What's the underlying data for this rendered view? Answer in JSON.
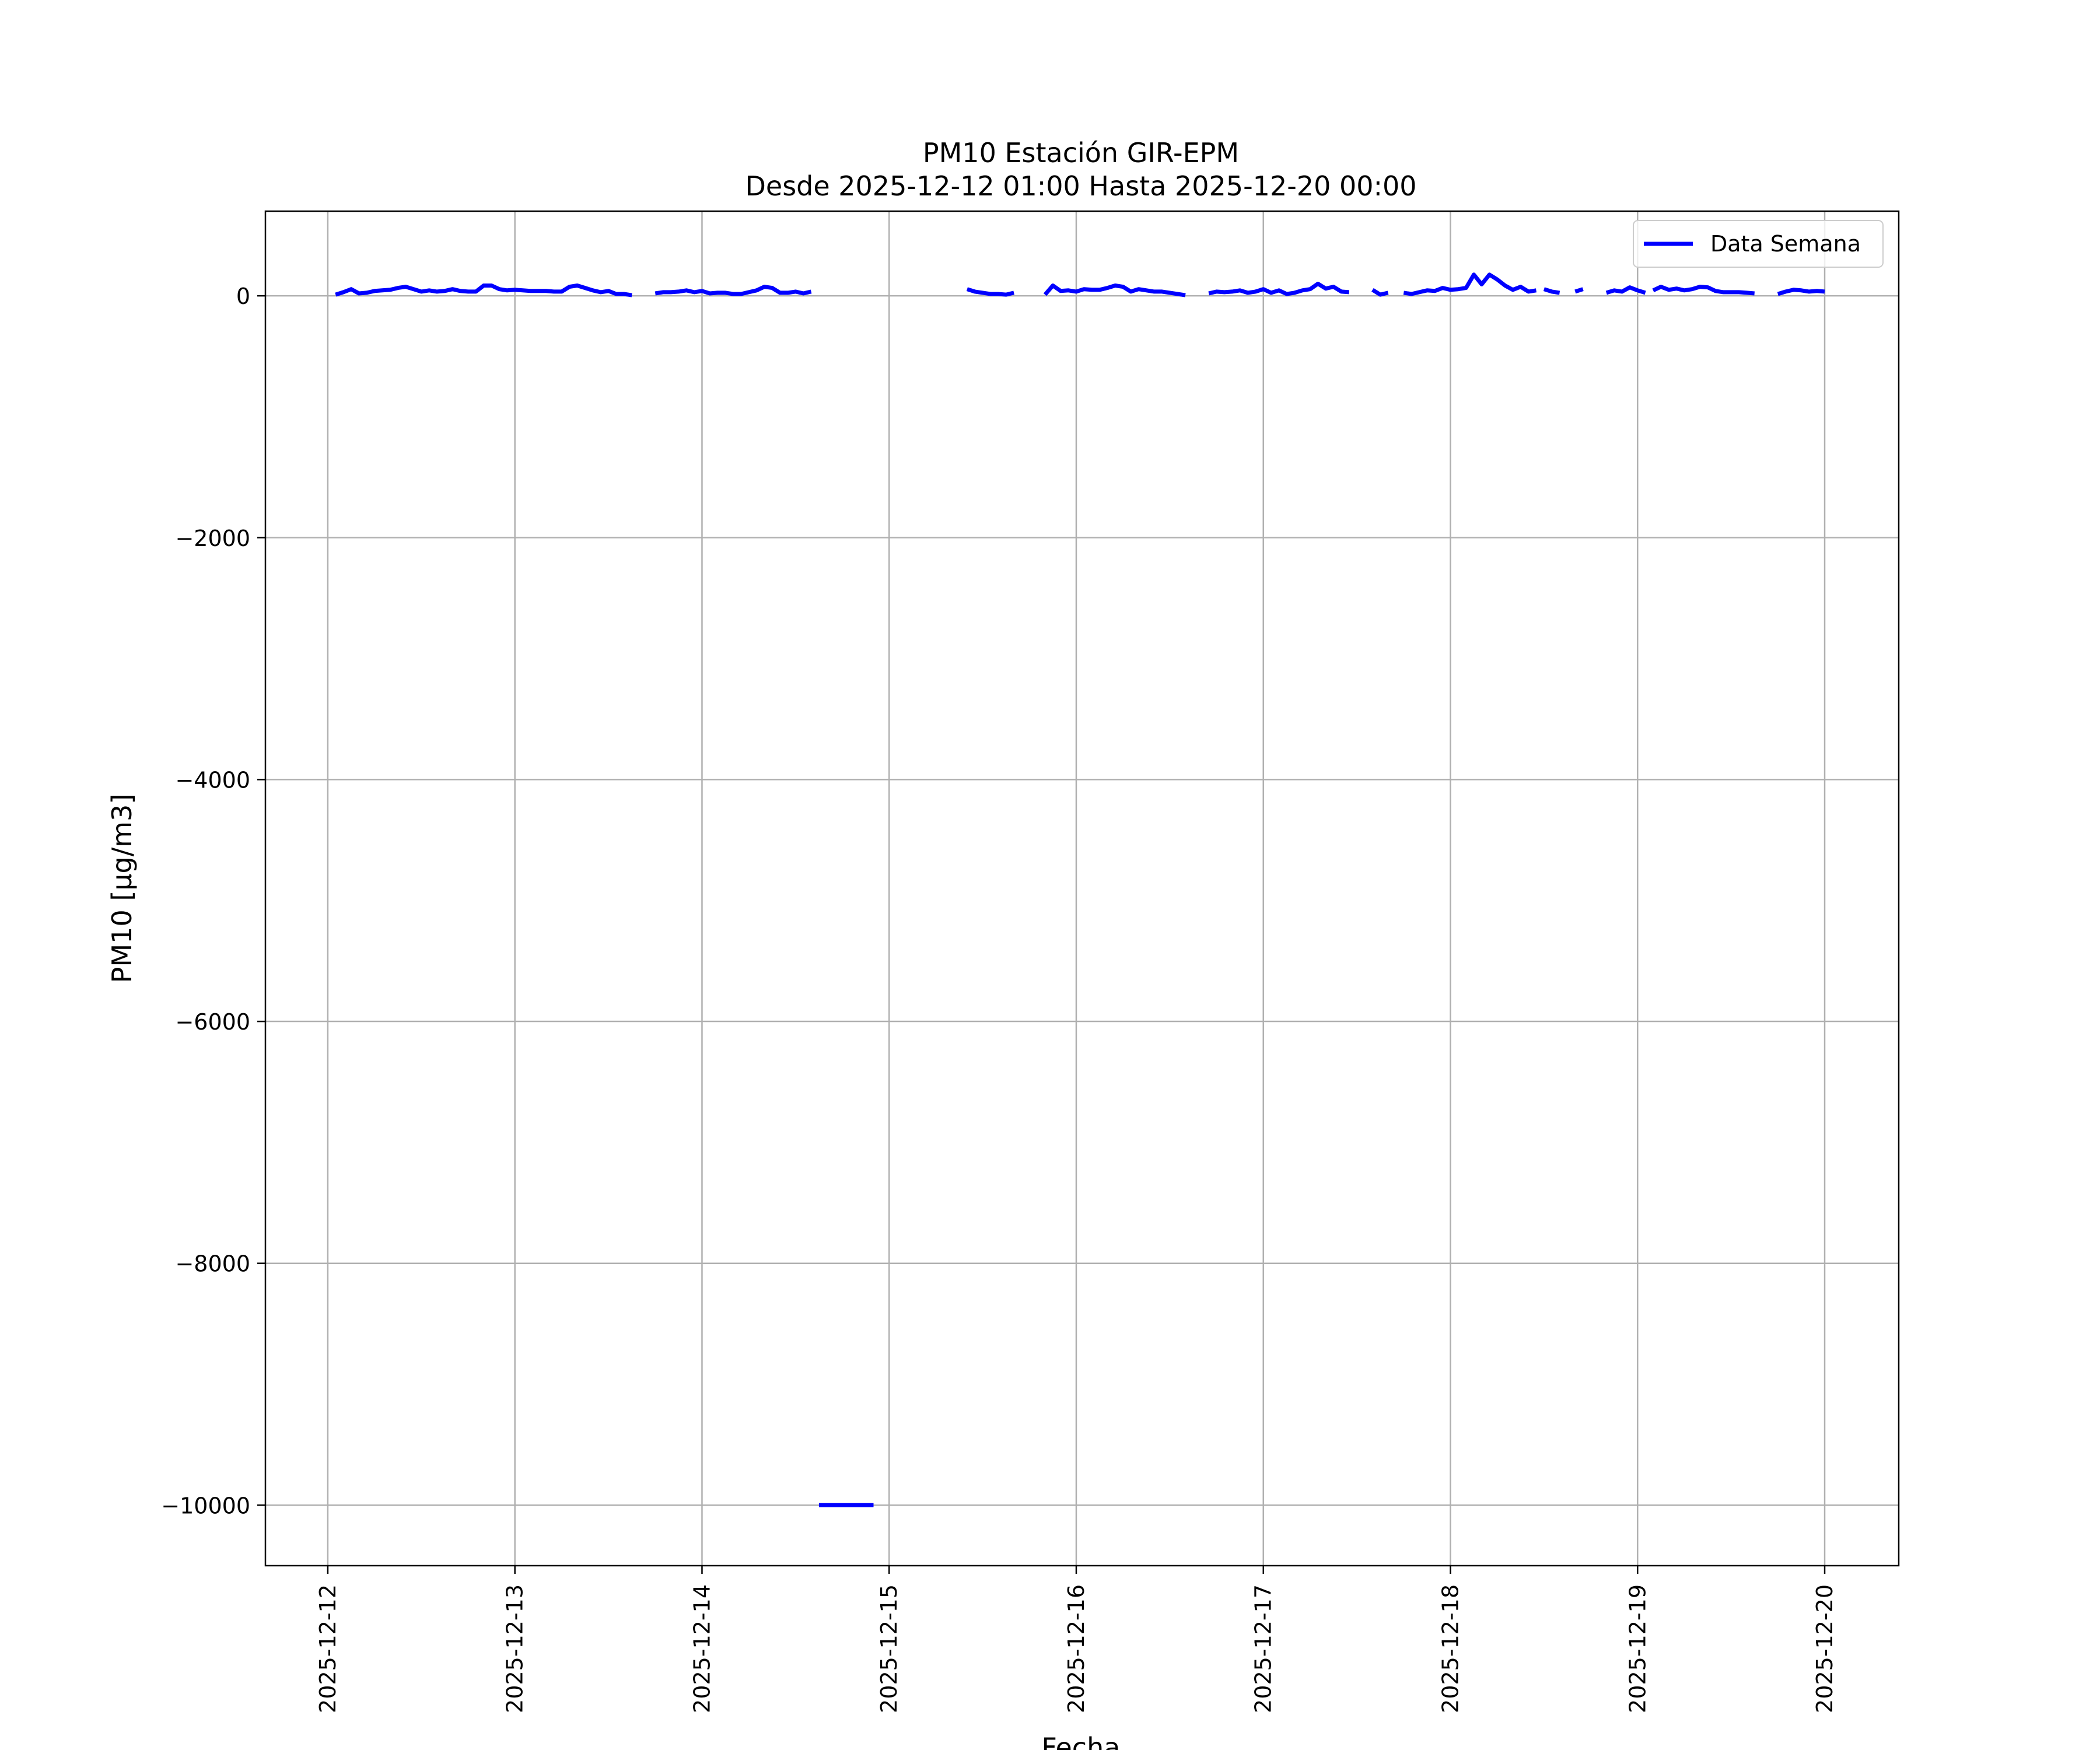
{
  "chart_data": {
    "type": "line",
    "title": "PM10 Estación GIR-EPM",
    "subtitle": "Desde 2025-12-12 01:00 Hasta 2025-12-20 00:00",
    "xlabel": "Fecha",
    "ylabel": "PM10 [μg/m3]",
    "xlim": [
      "2025-12-11 16:00",
      "2025-12-20 09:30"
    ],
    "ylim": [
      -10500,
      700
    ],
    "x_ticks": [
      "2025-12-12",
      "2025-12-13",
      "2025-12-14",
      "2025-12-15",
      "2025-12-16",
      "2025-12-17",
      "2025-12-18",
      "2025-12-19",
      "2025-12-20"
    ],
    "y_ticks": [
      0,
      -2000,
      -4000,
      -6000,
      -8000,
      -10000
    ],
    "y_tick_labels": [
      "0",
      "−2000",
      "−4000",
      "−6000",
      "−8000",
      "−10000"
    ],
    "grid": true,
    "legend_position": "top-right",
    "series": [
      {
        "name": "Data Semana",
        "color": "#0000ff",
        "segments": [
          [
            [
              "2025-12-12 01:00",
              10
            ],
            [
              "2025-12-12 02:00",
              30
            ],
            [
              "2025-12-12 03:00",
              55
            ],
            [
              "2025-12-12 04:00",
              20
            ],
            [
              "2025-12-12 05:00",
              25
            ],
            [
              "2025-12-12 06:00",
              40
            ],
            [
              "2025-12-12 07:00",
              45
            ],
            [
              "2025-12-12 08:00",
              50
            ],
            [
              "2025-12-12 09:00",
              65
            ],
            [
              "2025-12-12 10:00",
              75
            ],
            [
              "2025-12-12 11:00",
              55
            ],
            [
              "2025-12-12 12:00",
              35
            ],
            [
              "2025-12-12 13:00",
              45
            ],
            [
              "2025-12-12 14:00",
              35
            ],
            [
              "2025-12-12 15:00",
              40
            ],
            [
              "2025-12-12 16:00",
              55
            ],
            [
              "2025-12-12 17:00",
              40
            ],
            [
              "2025-12-12 18:00",
              35
            ],
            [
              "2025-12-12 19:00",
              35
            ],
            [
              "2025-12-12 20:00",
              85
            ],
            [
              "2025-12-12 21:00",
              85
            ],
            [
              "2025-12-12 22:00",
              55
            ],
            [
              "2025-12-12 23:00",
              45
            ],
            [
              "2025-12-13 00:00",
              50
            ],
            [
              "2025-12-13 01:00",
              45
            ],
            [
              "2025-12-13 02:00",
              40
            ],
            [
              "2025-12-13 03:00",
              40
            ],
            [
              "2025-12-13 04:00",
              40
            ],
            [
              "2025-12-13 05:00",
              35
            ],
            [
              "2025-12-13 06:00",
              35
            ],
            [
              "2025-12-13 07:00",
              75
            ],
            [
              "2025-12-13 08:00",
              85
            ],
            [
              "2025-12-13 09:00",
              65
            ],
            [
              "2025-12-13 10:00",
              45
            ],
            [
              "2025-12-13 11:00",
              30
            ],
            [
              "2025-12-13 12:00",
              40
            ],
            [
              "2025-12-13 13:00",
              15
            ],
            [
              "2025-12-13 14:00",
              15
            ],
            [
              "2025-12-13 15:00",
              5
            ]
          ],
          [
            [
              "2025-12-13 18:00",
              20
            ],
            [
              "2025-12-13 19:00",
              30
            ],
            [
              "2025-12-13 20:00",
              30
            ],
            [
              "2025-12-13 21:00",
              35
            ],
            [
              "2025-12-13 22:00",
              45
            ],
            [
              "2025-12-13 23:00",
              30
            ],
            [
              "2025-12-14 00:00",
              40
            ],
            [
              "2025-12-14 01:00",
              20
            ],
            [
              "2025-12-14 02:00",
              25
            ],
            [
              "2025-12-14 03:00",
              25
            ],
            [
              "2025-12-14 04:00",
              15
            ],
            [
              "2025-12-14 05:00",
              15
            ],
            [
              "2025-12-14 06:00",
              30
            ],
            [
              "2025-12-14 07:00",
              45
            ],
            [
              "2025-12-14 08:00",
              75
            ],
            [
              "2025-12-14 09:00",
              65
            ],
            [
              "2025-12-14 10:00",
              25
            ],
            [
              "2025-12-14 11:00",
              25
            ],
            [
              "2025-12-14 12:00",
              35
            ],
            [
              "2025-12-14 13:00",
              20
            ],
            [
              "2025-12-14 14:00",
              35
            ]
          ],
          [
            [
              "2025-12-14 15:00",
              -10000
            ],
            [
              "2025-12-14 16:00",
              -10000
            ],
            [
              "2025-12-14 17:00",
              -10000
            ],
            [
              "2025-12-14 18:00",
              -10000
            ],
            [
              "2025-12-14 19:00",
              -10000
            ],
            [
              "2025-12-14 20:00",
              -10000
            ],
            [
              "2025-12-14 21:00",
              -10000
            ],
            [
              "2025-12-14 22:00",
              -10000
            ]
          ],
          [
            [
              "2025-12-15 10:00",
              55
            ],
            [
              "2025-12-15 11:00",
              35
            ],
            [
              "2025-12-15 12:00",
              25
            ],
            [
              "2025-12-15 13:00",
              15
            ],
            [
              "2025-12-15 14:00",
              15
            ],
            [
              "2025-12-15 15:00",
              10
            ],
            [
              "2025-12-15 16:00",
              25
            ]
          ],
          [
            [
              "2025-12-15 20:00",
              10
            ],
            [
              "2025-12-15 21:00",
              85
            ],
            [
              "2025-12-15 22:00",
              40
            ],
            [
              "2025-12-15 23:00",
              45
            ],
            [
              "2025-12-16 00:00",
              35
            ],
            [
              "2025-12-16 01:00",
              55
            ],
            [
              "2025-12-16 02:00",
              50
            ],
            [
              "2025-12-16 03:00",
              50
            ],
            [
              "2025-12-16 04:00",
              65
            ],
            [
              "2025-12-16 05:00",
              85
            ],
            [
              "2025-12-16 06:00",
              75
            ],
            [
              "2025-12-16 07:00",
              35
            ],
            [
              "2025-12-16 08:00",
              55
            ],
            [
              "2025-12-16 09:00",
              45
            ],
            [
              "2025-12-16 10:00",
              35
            ],
            [
              "2025-12-16 11:00",
              35
            ],
            [
              "2025-12-16 12:00",
              25
            ],
            [
              "2025-12-16 13:00",
              15
            ],
            [
              "2025-12-16 14:00",
              5
            ]
          ],
          [
            [
              "2025-12-16 17:00",
              20
            ],
            [
              "2025-12-16 18:00",
              35
            ],
            [
              "2025-12-16 19:00",
              30
            ],
            [
              "2025-12-16 20:00",
              35
            ],
            [
              "2025-12-16 21:00",
              45
            ],
            [
              "2025-12-16 22:00",
              25
            ],
            [
              "2025-12-16 23:00",
              35
            ],
            [
              "2025-12-17 00:00",
              55
            ],
            [
              "2025-12-17 01:00",
              25
            ],
            [
              "2025-12-17 02:00",
              45
            ],
            [
              "2025-12-17 03:00",
              15
            ],
            [
              "2025-12-17 04:00",
              25
            ],
            [
              "2025-12-17 05:00",
              45
            ],
            [
              "2025-12-17 06:00",
              55
            ],
            [
              "2025-12-17 07:00",
              100
            ],
            [
              "2025-12-17 08:00",
              60
            ],
            [
              "2025-12-17 09:00",
              75
            ],
            [
              "2025-12-17 10:00",
              35
            ],
            [
              "2025-12-17 11:00",
              30
            ]
          ],
          [
            [
              "2025-12-17 14:00",
              50
            ],
            [
              "2025-12-17 15:00",
              10
            ],
            [
              "2025-12-17 16:00",
              25
            ]
          ],
          [
            [
              "2025-12-17 18:00",
              25
            ],
            [
              "2025-12-17 19:00",
              15
            ],
            [
              "2025-12-17 20:00",
              30
            ],
            [
              "2025-12-17 21:00",
              45
            ],
            [
              "2025-12-17 22:00",
              40
            ],
            [
              "2025-12-17 23:00",
              65
            ],
            [
              "2025-12-18 00:00",
              50
            ],
            [
              "2025-12-18 01:00",
              55
            ],
            [
              "2025-12-18 02:00",
              65
            ],
            [
              "2025-12-18 03:00",
              175
            ],
            [
              "2025-12-18 04:00",
              95
            ],
            [
              "2025-12-18 05:00",
              175
            ],
            [
              "2025-12-18 06:00",
              135
            ],
            [
              "2025-12-18 07:00",
              85
            ],
            [
              "2025-12-18 08:00",
              50
            ],
            [
              "2025-12-18 09:00",
              75
            ],
            [
              "2025-12-18 10:00",
              35
            ],
            [
              "2025-12-18 11:00",
              45
            ]
          ],
          [
            [
              "2025-12-18 12:00",
              55
            ],
            [
              "2025-12-18 13:00",
              35
            ],
            [
              "2025-12-18 14:00",
              25
            ]
          ],
          [
            [
              "2025-12-18 16:00",
              35
            ],
            [
              "2025-12-18 17:00",
              55
            ]
          ],
          [
            [
              "2025-12-18 20:00",
              25
            ],
            [
              "2025-12-18 21:00",
              45
            ],
            [
              "2025-12-18 22:00",
              35
            ],
            [
              "2025-12-18 23:00",
              70
            ],
            [
              "2025-12-19 00:00",
              45
            ],
            [
              "2025-12-19 01:00",
              25
            ]
          ],
          [
            [
              "2025-12-19 02:00",
              45
            ],
            [
              "2025-12-19 03:00",
              75
            ],
            [
              "2025-12-19 04:00",
              50
            ],
            [
              "2025-12-19 05:00",
              60
            ],
            [
              "2025-12-19 06:00",
              45
            ],
            [
              "2025-12-19 07:00",
              55
            ],
            [
              "2025-12-19 08:00",
              75
            ],
            [
              "2025-12-19 09:00",
              70
            ],
            [
              "2025-12-19 10:00",
              40
            ],
            [
              "2025-12-19 11:00",
              30
            ],
            [
              "2025-12-19 12:00",
              30
            ],
            [
              "2025-12-19 13:00",
              30
            ],
            [
              "2025-12-19 14:00",
              25
            ],
            [
              "2025-12-19 15:00",
              20
            ]
          ],
          [
            [
              "2025-12-19 18:00",
              15
            ],
            [
              "2025-12-19 19:00",
              35
            ],
            [
              "2025-12-19 20:00",
              50
            ],
            [
              "2025-12-19 21:00",
              45
            ],
            [
              "2025-12-19 22:00",
              35
            ],
            [
              "2025-12-19 23:00",
              40
            ],
            [
              "2025-12-20 00:00",
              35
            ]
          ]
        ]
      }
    ]
  }
}
